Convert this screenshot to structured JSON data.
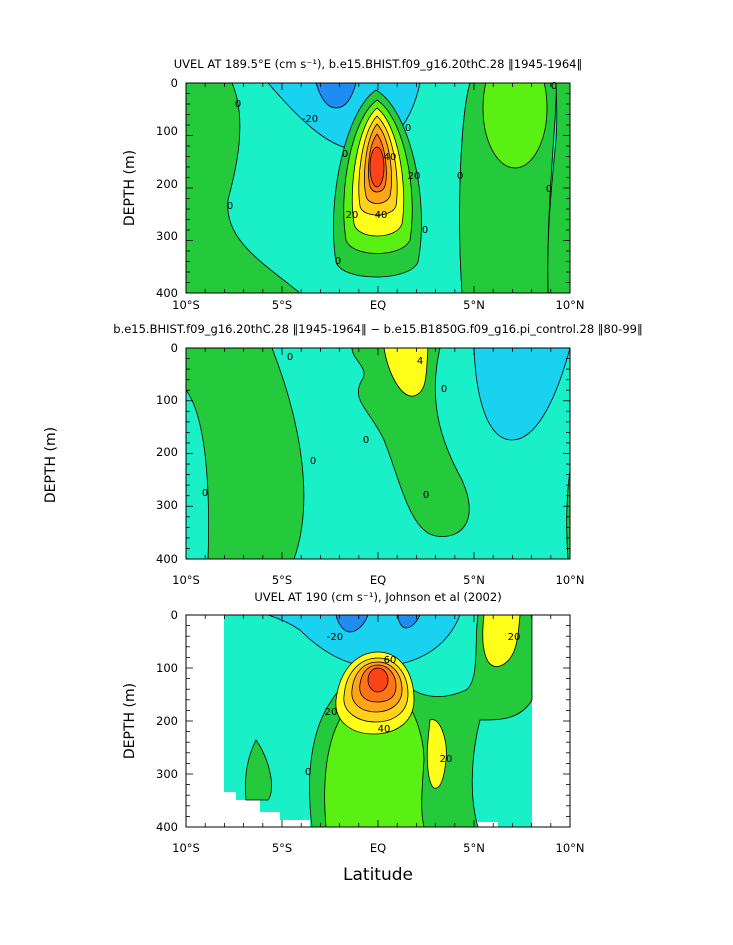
{
  "x_tick_labels": [
    "10°S",
    "5°S",
    "EQ",
    "5°N",
    "10°N"
  ],
  "y_tick_labels": [
    "0",
    "100",
    "200",
    "300",
    "400"
  ],
  "shared_y_label": "DEPTH (m)",
  "shared_x_label": "Latitude",
  "chart_data": [
    {
      "type": "heatmap",
      "title": "UVEL AT 189.5°E (cm s⁻¹), b.e15.BHIST.f09_g16.20thC.28 ‖1945-1964‖",
      "ylabel": "DEPTH (m)",
      "xlabel": "",
      "x_range": [
        -10,
        10
      ],
      "y_range": [
        0,
        400
      ],
      "y_inverted": true,
      "contour_labels": [
        "0",
        "-20",
        "0",
        "40",
        "20",
        "20",
        "40",
        "0",
        "0",
        "0",
        "0",
        "0",
        "0",
        "0"
      ],
      "colors": [
        "#19d2f0",
        "#19f0c8",
        "#24c93c",
        "#5af014",
        "#ffff19",
        "#ffa319",
        "#ff4319"
      ]
    },
    {
      "type": "heatmap",
      "title": "b.e15.BHIST.f09_g16.20thC.28 ‖1945-1964‖ − b.e15.B1850G.f09_g16.pi_control.28 ‖80-99‖",
      "ylabel": "",
      "xlabel": "",
      "x_range": [
        -10,
        10
      ],
      "y_range": [
        0,
        400
      ],
      "y_inverted": true,
      "contour_labels": [
        "4",
        "0",
        "0",
        "0",
        "0",
        "0",
        "0"
      ],
      "colors": [
        "#19d2f0",
        "#19f0c8",
        "#24c93c",
        "#ffff19"
      ]
    },
    {
      "type": "heatmap",
      "title": "UVEL AT 190 (cm s⁻¹), Johnson et al (2002)",
      "ylabel": "DEPTH (m)",
      "xlabel": "Latitude",
      "x_range": [
        -10,
        10
      ],
      "y_range": [
        0,
        400
      ],
      "y_inverted": true,
      "contour_labels": [
        "-20",
        "60",
        "40",
        "20",
        "20",
        "20",
        "0"
      ],
      "colors": [
        "#19d2f0",
        "#19f0c8",
        "#24c93c",
        "#5af014",
        "#ffff19",
        "#ffa319",
        "#ff4319"
      ]
    }
  ]
}
